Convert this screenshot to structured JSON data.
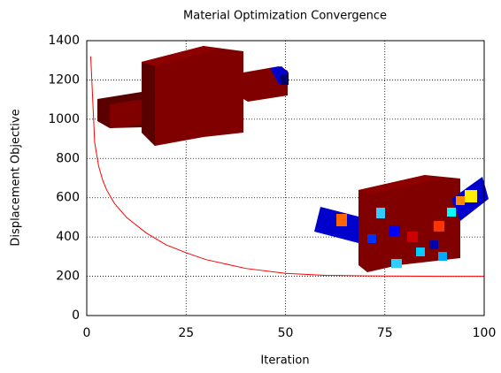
{
  "chart_data": {
    "type": "line",
    "title": "Material Optimization Convergence",
    "x_label": "Iteration",
    "y_label": "Displacement Objective",
    "x": [
      1,
      2,
      3,
      4,
      5,
      7,
      10,
      15,
      20,
      25,
      30,
      40,
      50,
      60,
      70,
      80,
      90,
      100
    ],
    "series": [
      {
        "color": "#ff0000",
        "values": [
          1320,
          880,
          760,
          690,
          640,
          570,
          500,
          420,
          360,
          320,
          285,
          240,
          215,
          205,
          202,
          201,
          200,
          200
        ]
      }
    ],
    "xlim": [
      0,
      100
    ],
    "xticks": [
      0,
      25,
      50,
      75,
      100
    ],
    "ylim": [
      0,
      1400
    ],
    "yticks": [
      0,
      200,
      400,
      600,
      800,
      1000,
      1200,
      1400
    ],
    "grid": true
  }
}
